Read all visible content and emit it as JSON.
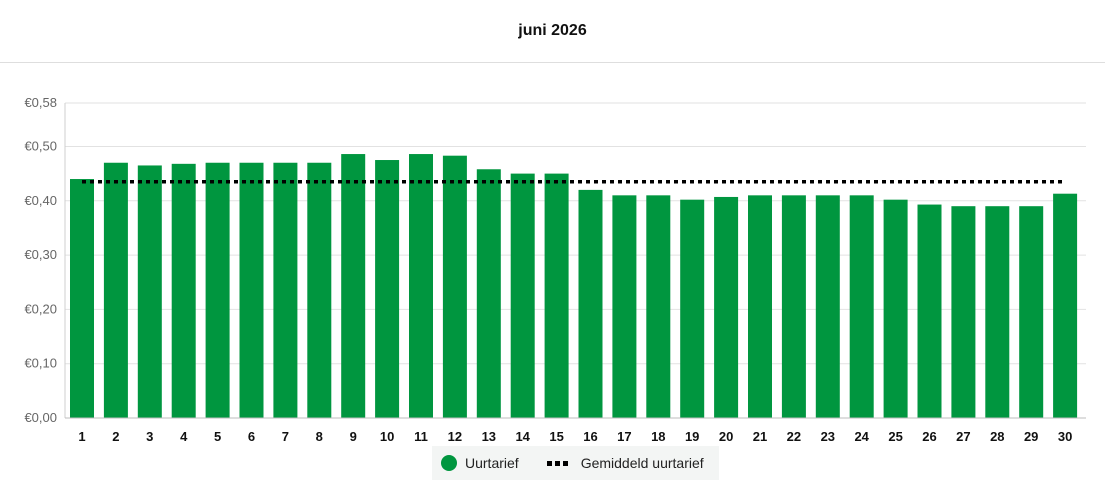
{
  "header": {
    "title": "juni 2026"
  },
  "chart_data": {
    "type": "bar",
    "title": "juni 2026",
    "xlabel": "",
    "ylabel": "",
    "categories": [
      "1",
      "2",
      "3",
      "4",
      "5",
      "6",
      "7",
      "8",
      "9",
      "10",
      "11",
      "12",
      "13",
      "14",
      "15",
      "16",
      "17",
      "18",
      "19",
      "20",
      "21",
      "22",
      "23",
      "24",
      "25",
      "26",
      "27",
      "28",
      "29",
      "30"
    ],
    "series": [
      {
        "name": "Uurtarief",
        "type": "bar",
        "color": "#00963f",
        "values": [
          0.44,
          0.47,
          0.465,
          0.468,
          0.47,
          0.47,
          0.47,
          0.47,
          0.486,
          0.475,
          0.486,
          0.483,
          0.458,
          0.45,
          0.45,
          0.42,
          0.41,
          0.41,
          0.402,
          0.407,
          0.41,
          0.41,
          0.41,
          0.41,
          0.402,
          0.393,
          0.39,
          0.39,
          0.39,
          0.413
        ]
      },
      {
        "name": "Gemiddeld uurtarief",
        "type": "line",
        "style": "dotted",
        "color": "#000000",
        "value": 0.435
      }
    ],
    "yticks": [
      0,
      0.1,
      0.2,
      0.3,
      0.4,
      0.5,
      0.58
    ],
    "ytick_labels": [
      "€0,00",
      "€0,10",
      "€0,20",
      "€0,30",
      "€0,40",
      "€0,50",
      "€0,58"
    ],
    "ylim": [
      0,
      0.58
    ],
    "grid": true,
    "legend_position": "bottom-center"
  },
  "legend": {
    "items": [
      {
        "label": "Uurtarief",
        "icon": "green-circle-icon"
      },
      {
        "label": "Gemiddeld uurtarief",
        "icon": "dotted-line-icon"
      }
    ]
  }
}
